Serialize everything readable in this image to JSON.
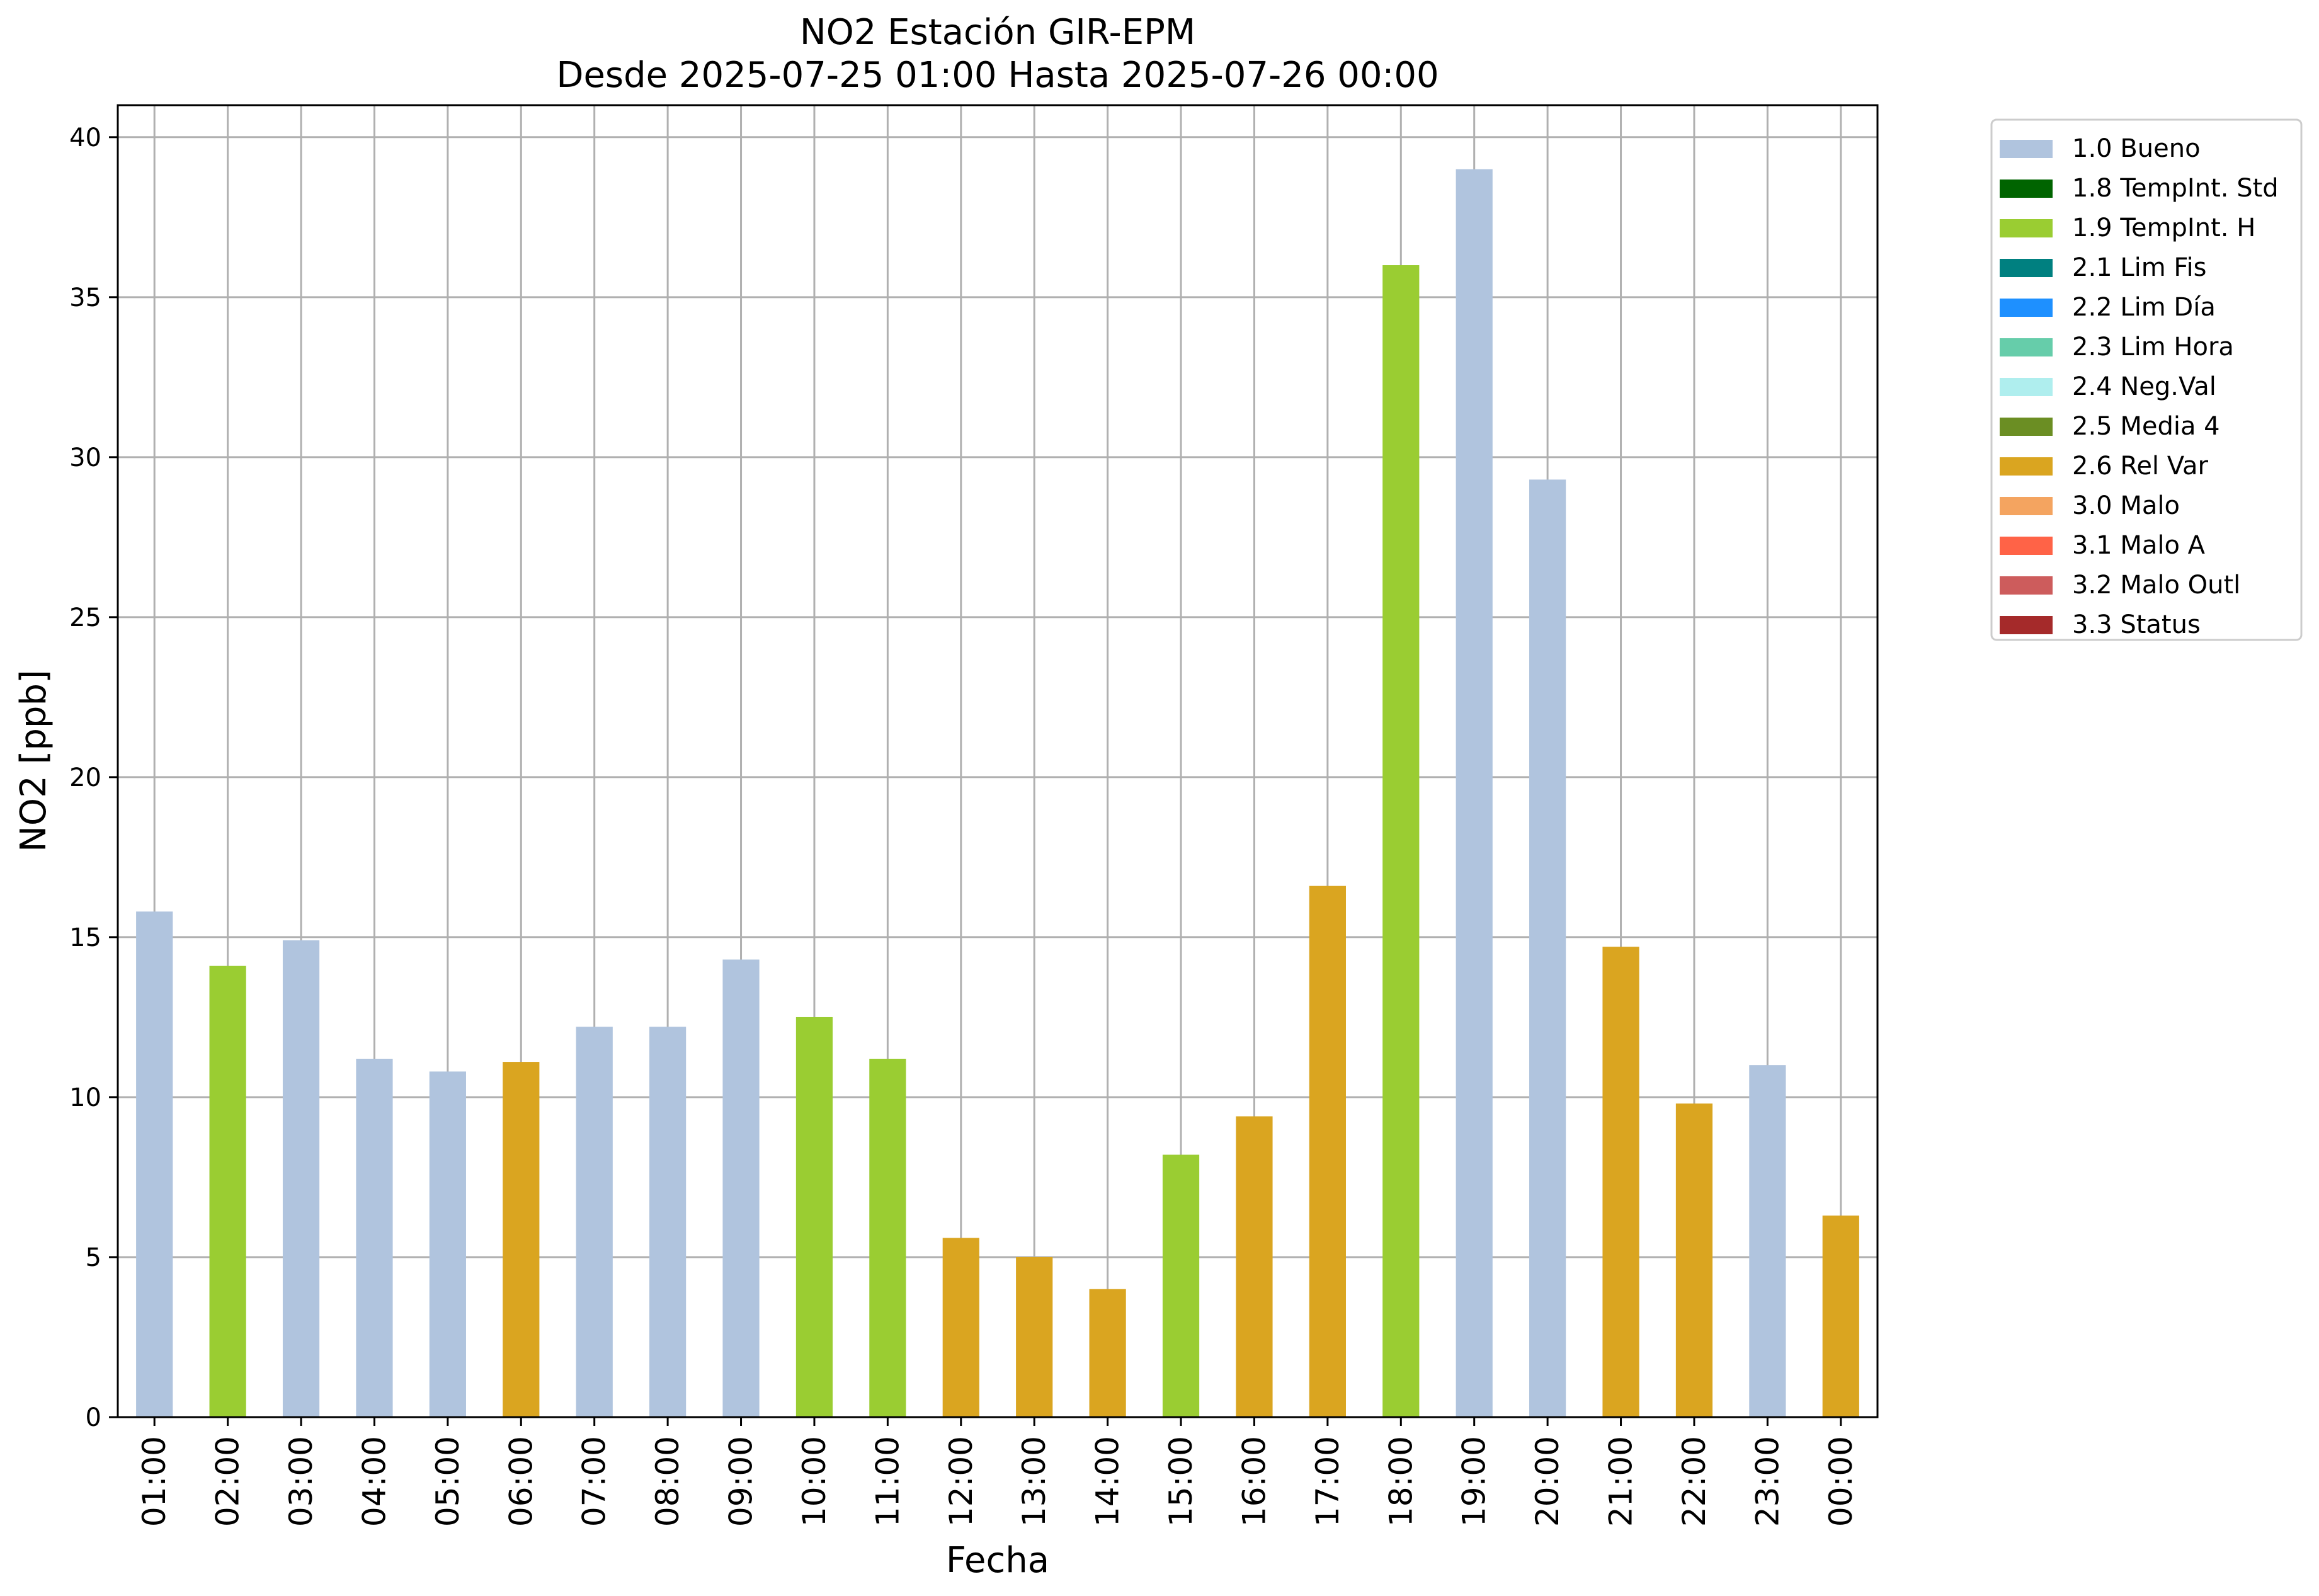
{
  "chart_data": {
    "type": "bar",
    "title_line1": "NO2 Estación GIR-EPM",
    "title_line2": "Desde 2025-07-25 01:00 Hasta 2025-07-26 00:00",
    "xlabel": "Fecha",
    "ylabel": "NO2 [ppb]",
    "ylim": [
      0,
      41
    ],
    "yticks": [
      0,
      5,
      10,
      15,
      20,
      25,
      30,
      35,
      40
    ],
    "grid": true,
    "legend_position": "outside-right-top",
    "categories": [
      "01:00",
      "02:00",
      "03:00",
      "04:00",
      "05:00",
      "06:00",
      "07:00",
      "08:00",
      "09:00",
      "10:00",
      "11:00",
      "12:00",
      "13:00",
      "14:00",
      "15:00",
      "16:00",
      "17:00",
      "18:00",
      "19:00",
      "20:00",
      "21:00",
      "22:00",
      "23:00",
      "00:00"
    ],
    "values": [
      15.8,
      14.1,
      14.9,
      11.2,
      10.8,
      11.1,
      12.2,
      12.2,
      14.3,
      12.5,
      11.2,
      5.6,
      5.0,
      4.0,
      8.2,
      9.4,
      16.6,
      36.0,
      39.0,
      29.3,
      14.7,
      9.8,
      11.0,
      6.3
    ],
    "flags": [
      "1.0 Bueno",
      "1.9 TempInt. H",
      "1.0 Bueno",
      "1.0 Bueno",
      "1.0 Bueno",
      "2.6 Rel Var",
      "1.0 Bueno",
      "1.0 Bueno",
      "1.0 Bueno",
      "1.9 TempInt. H",
      "1.9 TempInt. H",
      "2.6 Rel Var",
      "2.6 Rel Var",
      "2.6 Rel Var",
      "1.9 TempInt. H",
      "2.6 Rel Var",
      "2.6 Rel Var",
      "1.9 TempInt. H",
      "1.0 Bueno",
      "1.0 Bueno",
      "2.6 Rel Var",
      "2.6 Rel Var",
      "1.0 Bueno",
      "2.6 Rel Var"
    ],
    "legend": [
      {
        "label": "1.0 Bueno",
        "color": "#b0c4de"
      },
      {
        "label": "1.8 TempInt. Std",
        "color": "#006400"
      },
      {
        "label": "1.9 TempInt. H",
        "color": "#9acd32"
      },
      {
        "label": "2.1 Lim Fis",
        "color": "#008080"
      },
      {
        "label": "2.2 Lim Día",
        "color": "#1e90ff"
      },
      {
        "label": "2.3 Lim Hora",
        "color": "#66cdaa"
      },
      {
        "label": "2.4 Neg.Val",
        "color": "#afeeee"
      },
      {
        "label": "2.5 Media 4",
        "color": "#6b8e23"
      },
      {
        "label": "2.6 Rel Var",
        "color": "#daa520"
      },
      {
        "label": "3.0 Malo",
        "color": "#f4a460"
      },
      {
        "label": "3.1 Malo A",
        "color": "#ff6347"
      },
      {
        "label": "3.2 Malo Outl",
        "color": "#cd5c5c"
      },
      {
        "label": "3.3 Status",
        "color": "#a52a2a"
      }
    ]
  }
}
